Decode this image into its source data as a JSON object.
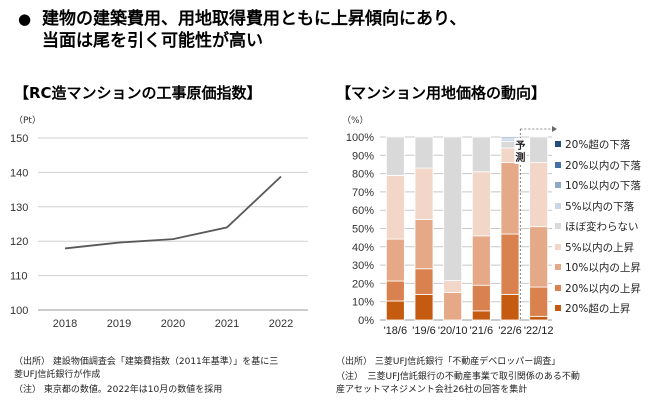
{
  "headline": {
    "bullet": "●",
    "line1": "建物の建築費用、用地取得費用ともに上昇傾向にあり、",
    "line2": "当面は尾を引く可能性が高い"
  },
  "left_panel": {
    "title": "【RC造マンションの工事原価指数】",
    "unit": "（Pt）",
    "notes": {
      "source_line1": "（出所） 建設物価調査会「建築費指数（2011年基準）」を基に三",
      "source_line2": "菱UFJ信託銀行が作成",
      "note": "（注） 東京都の数値。2022年は10月の数値を採用"
    }
  },
  "right_panel": {
    "title": "【マンション用地価格の動向】",
    "unit": "（%）",
    "forecast_label_1": "予",
    "forecast_label_2": "測",
    "notes": {
      "source": "（出所） 三菱UFJ信託銀行「不動産デベロッパー調査」",
      "note_line1": "（注）　三菱UFJ信託銀行の不動産事業で取引関係のある不動",
      "note_line2": "産アセットマネジメント会社26社の回答を集計"
    }
  },
  "chart_data": [
    {
      "type": "line",
      "title": "【RC造マンションの工事原価指数】",
      "ylabel": "（Pt）",
      "xlabel": "",
      "x": [
        "2018",
        "2019",
        "2020",
        "2021",
        "2022"
      ],
      "series": [
        {
          "name": "RC造マンション工事原価指数",
          "values": [
            117.9,
            119.6,
            120.6,
            124.0,
            138.8
          ],
          "color": "#595959"
        }
      ],
      "ylim": [
        100,
        150
      ],
      "yticks": [
        100,
        110,
        120,
        130,
        140,
        150
      ],
      "grid": true,
      "legend": "none"
    },
    {
      "type": "bar",
      "stacked": true,
      "title": "【マンション用地価格の動向】",
      "ylabel": "（%）",
      "categories": [
        "'18/6",
        "'19/6",
        "'20/10",
        "'21/6",
        "'22/6",
        "'22/12"
      ],
      "ylim": [
        0,
        100
      ],
      "yticks": [
        "0%",
        "10%",
        "20%",
        "30%",
        "40%",
        "50%",
        "60%",
        "70%",
        "80%",
        "90%",
        "100%"
      ],
      "grid": true,
      "legend": "right",
      "annotation": "予測 ('22/12)",
      "series": [
        {
          "name": "20%超の上昇",
          "color": "#C55A11",
          "values": [
            10.4,
            14,
            0,
            5,
            14,
            2
          ]
        },
        {
          "name": "20%以内の上昇",
          "color": "#D9824F",
          "values": [
            10.9,
            14,
            0,
            14,
            33,
            16
          ]
        },
        {
          "name": "10%以内の上昇",
          "color": "#E5A987",
          "values": [
            22.9,
            27,
            15,
            27,
            39,
            33
          ]
        },
        {
          "name": "5%以内の上昇",
          "color": "#F2D6C8",
          "values": [
            34.8,
            28,
            6.5,
            35,
            8,
            35
          ]
        },
        {
          "name": "ほぼ変わらない",
          "color": "#D9D9D9",
          "values": [
            21,
            17,
            78.5,
            19,
            3.5,
            14
          ]
        },
        {
          "name": "5%以内の下落",
          "color": "#C9D7E7",
          "values": [
            0,
            0,
            0,
            0,
            1.5,
            0
          ]
        },
        {
          "name": "10%以内の下落",
          "color": "#8EA9C8",
          "values": [
            0,
            0,
            0,
            0,
            1,
            0
          ]
        },
        {
          "name": "20%以内の下落",
          "color": "#4472A6",
          "values": [
            0,
            0,
            0,
            0,
            0,
            0
          ]
        },
        {
          "name": "20%超の下落",
          "color": "#1F4E79",
          "values": [
            0,
            0,
            0,
            0,
            0,
            0
          ]
        }
      ],
      "legend_order": [
        "20%超の下落",
        "20%以内の下落",
        "10%以内の下落",
        "5%以内の下落",
        "ほぼ変わらない",
        "5%以内の上昇",
        "10%以内の上昇",
        "20%以内の上昇",
        "20%超の上昇"
      ]
    }
  ]
}
